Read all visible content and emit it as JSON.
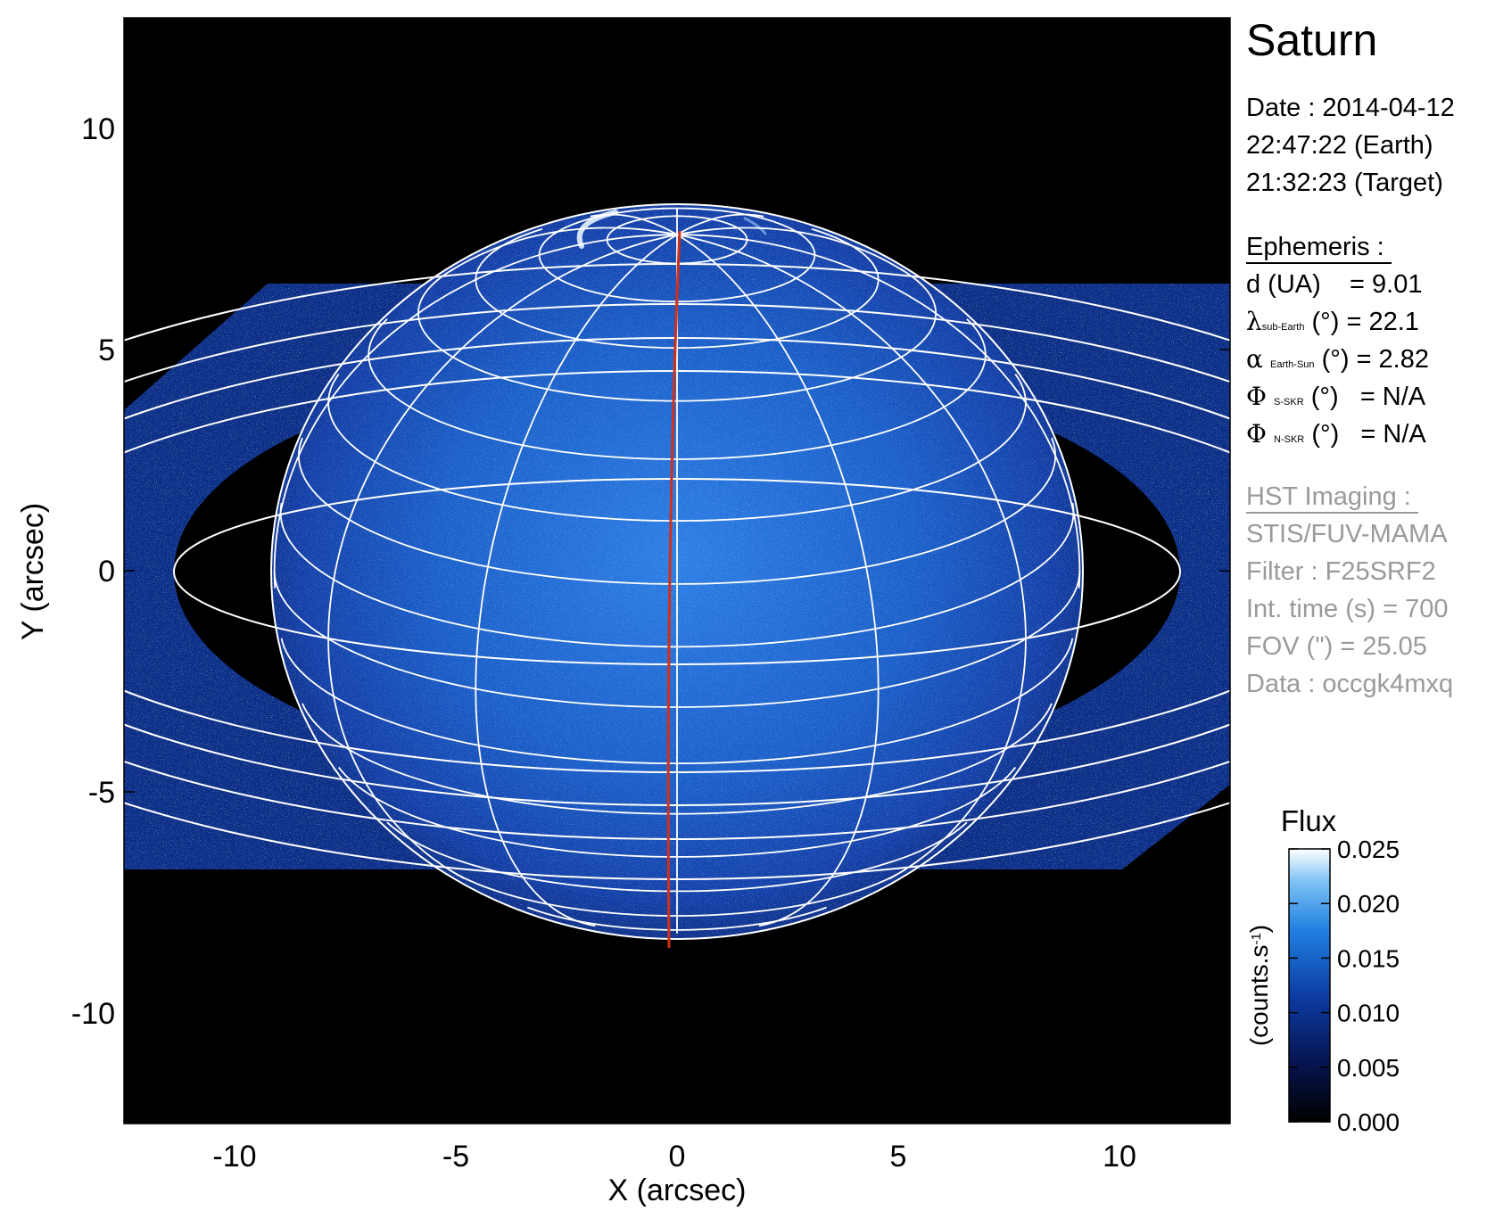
{
  "chart_data": {
    "type": "heatmap",
    "title": "Saturn",
    "xlabel": "X (arcsec)",
    "ylabel": "Y (arcsec)",
    "xlim": [
      -12.5,
      12.5
    ],
    "ylim": [
      -12.5,
      12.5
    ],
    "xticks": [
      "-10",
      "-5",
      "0",
      "5",
      "10"
    ],
    "yticks": [
      "10",
      "5",
      "0",
      "-5",
      "-10"
    ],
    "xtick_values": [
      -10,
      -5,
      0,
      5,
      10
    ],
    "ytick_values": [
      10,
      5,
      0,
      -5,
      -10
    ],
    "grid": false,
    "colormap": "black-blue-white",
    "colors": {
      "background": "#000000",
      "low": "#07144d",
      "mid": "#1f6fd8",
      "high": "#ffffff",
      "meridian": "#d23018",
      "overlay": "#ffffff"
    },
    "planet": {
      "equatorial_radius_arcsec": 9.1,
      "polar_radius_arcsec": 8.2,
      "center": [
        0,
        0
      ]
    },
    "colorbar": {
      "title": "Flux",
      "label": "(counts.s-1)",
      "ticks": [
        "0.025",
        "0.020",
        "0.015",
        "0.010",
        "0.005",
        "0.000"
      ],
      "tick_values": [
        0.025,
        0.02,
        0.015,
        0.01,
        0.005,
        0.0
      ],
      "range": [
        0.0,
        0.025
      ]
    }
  },
  "info": {
    "title": "Saturn",
    "date_line": "Date : 2014-04-12",
    "earth_time": "22:47:22 (Earth)",
    "target_time": "21:32:23 (Target)",
    "ephemeris_header": "Ephemeris :",
    "d_label": "d (UA)",
    "d_value": "= 9.01",
    "lambda_symbol": "λ",
    "lambda_sub": "sub-Earth",
    "lambda_unit": "(°)",
    "lambda_value": "= 22.1",
    "alpha_symbol": "α",
    "alpha_sub": "Earth-Sun",
    "alpha_unit": "(°)",
    "alpha_value": "= 2.82",
    "phi_s_symbol": "Φ",
    "phi_s_sub": "S-SKR",
    "phi_s_unit": "(°)",
    "phi_s_value": "= N/A",
    "phi_n_symbol": "Φ",
    "phi_n_sub": "N-SKR",
    "phi_n_unit": "(°)",
    "phi_n_value": "= N/A",
    "hst_header": "HST Imaging :",
    "instrument": "STIS/FUV-MAMA",
    "filter": "Filter : F25SRF2",
    "int_time": "Int. time (s) = 700",
    "fov": "FOV (\") = 25.05",
    "data_id": "Data : occgk4mxq"
  }
}
